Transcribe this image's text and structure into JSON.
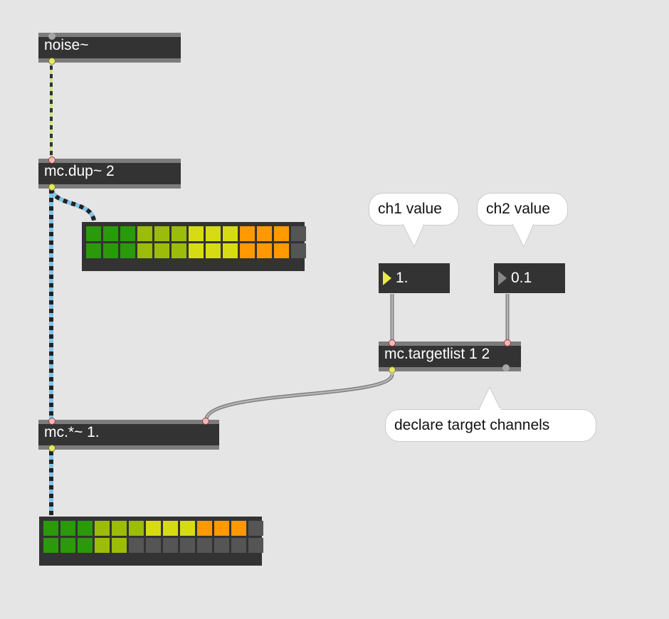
{
  "objects": {
    "noise": "noise~",
    "dup": "mc.dup~ 2",
    "mul": "mc.*~ 1.",
    "targetlist": "mc.targetlist 1 2"
  },
  "numbers": {
    "ch1": "1.",
    "ch2": "0.1"
  },
  "comments": {
    "ch1": "ch1 value",
    "ch2": "ch2 value",
    "target": "declare target channels"
  },
  "colors": {
    "green": "#2a9a0a",
    "yellowgreen": "#9bbd0a",
    "yellow": "#d7dc12",
    "orange": "#ff9900",
    "off": "#555555",
    "signal": "#7fc4ea",
    "control": "#a8a8a8"
  },
  "meters": {
    "top": {
      "rows": [
        [
          "green",
          "green",
          "green",
          "yellowgreen",
          "yellowgreen",
          "yellowgreen",
          "yellow",
          "yellow",
          "yellow",
          "orange",
          "orange",
          "orange",
          "off"
        ],
        [
          "green",
          "green",
          "green",
          "yellowgreen",
          "yellowgreen",
          "yellowgreen",
          "yellow",
          "yellow",
          "yellow",
          "orange",
          "orange",
          "orange",
          "off"
        ]
      ]
    },
    "bottom": {
      "rows": [
        [
          "green",
          "green",
          "green",
          "yellowgreen",
          "yellowgreen",
          "yellowgreen",
          "yellow",
          "yellow",
          "yellow",
          "orange",
          "orange",
          "orange",
          "off"
        ],
        [
          "green",
          "green",
          "green",
          "yellowgreen",
          "yellowgreen",
          "off",
          "off",
          "off",
          "off",
          "off",
          "off",
          "off",
          "off"
        ]
      ]
    }
  }
}
